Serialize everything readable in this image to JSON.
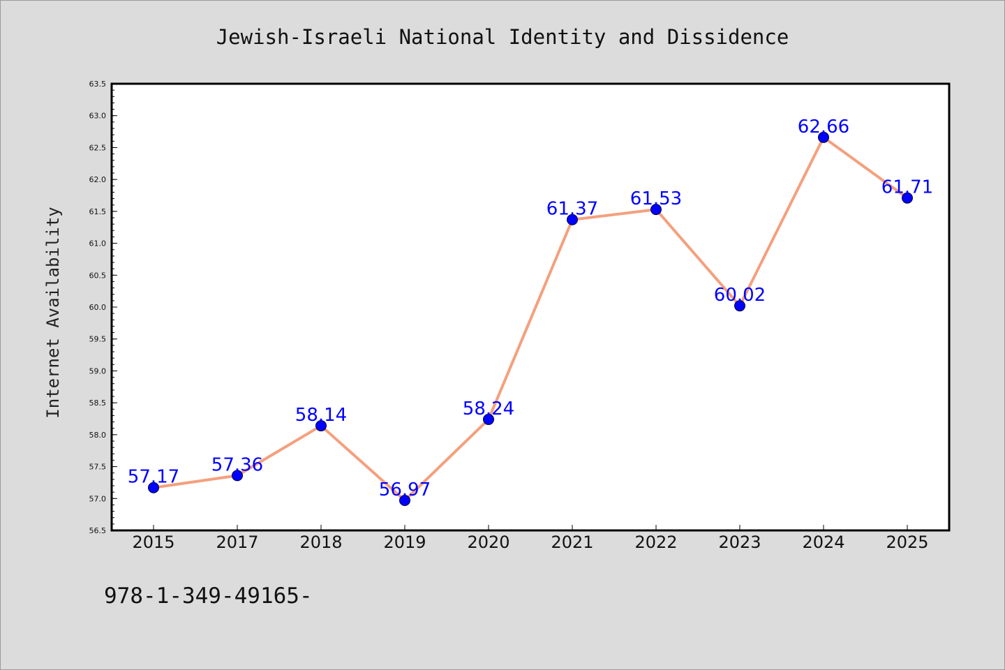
{
  "chart_data": {
    "type": "line",
    "title": "Jewish-Israeli National Identity and Dissidence",
    "xlabel": "",
    "ylabel": "Internet Availability",
    "categories": [
      "2015",
      "2017",
      "2018",
      "2019",
      "2020",
      "2021",
      "2022",
      "2023",
      "2024",
      "2025"
    ],
    "series": [
      {
        "values": [
          57.17,
          57.36,
          58.14,
          56.97,
          58.24,
          61.37,
          61.53,
          60.02,
          62.66,
          61.71
        ],
        "labels": [
          "57.17",
          "57.36",
          "58.14",
          "56.97",
          "58.24",
          "61.37",
          "61.53",
          "60.02",
          "62.66",
          "61.71"
        ],
        "line_color": "#f4a07e",
        "marker_color": "#0000ff"
      }
    ],
    "ylim": [
      56.5,
      63.5
    ],
    "yticks": [
      "56.5",
      "57.0",
      "57.5",
      "58.0",
      "58.5",
      "59.0",
      "59.5",
      "60.0",
      "60.5",
      "61.0",
      "61.5",
      "62.0",
      "62.5",
      "63.0",
      "63.5"
    ],
    "grid": false,
    "legend": "none"
  },
  "footer": {
    "text": "978-1-349-49165-"
  },
  "colors": {
    "background": "#dcdcdc",
    "plot_area": "#ffffff",
    "line": "#f4a07e",
    "marker": "#0000ff",
    "data_label": "#0000ff"
  }
}
